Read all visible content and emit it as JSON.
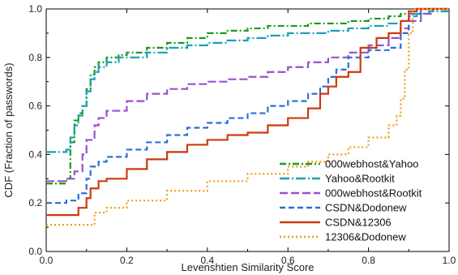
{
  "chart_data": {
    "type": "line",
    "title": "",
    "xlabel": "Levenshtien Similarity Score",
    "ylabel": "CDF (Fraction of passwords)",
    "xlim": [
      0.0,
      1.0
    ],
    "ylim": [
      0.0,
      1.0
    ],
    "xticks": [
      "0.0",
      "0.2",
      "0.4",
      "0.6",
      "0.8",
      "1.0"
    ],
    "yticks": [
      "0.0",
      "0.2",
      "0.4",
      "0.6",
      "0.8",
      "1.0"
    ],
    "grid": false,
    "legend_position": "bottom-right",
    "series": [
      {
        "name": "000webhost&Yahoo",
        "color": "#1a9c1a",
        "dash": "dashdot",
        "x": [
          0.0,
          0.05,
          0.06,
          0.07,
          0.08,
          0.09,
          0.1,
          0.11,
          0.12,
          0.13,
          0.15,
          0.18,
          0.2,
          0.25,
          0.3,
          0.35,
          0.4,
          0.45,
          0.5,
          0.55,
          0.6,
          0.65,
          0.7,
          0.75,
          0.8,
          0.85,
          0.88,
          0.9,
          0.92,
          0.95,
          0.97,
          1.0
        ],
        "y": [
          0.28,
          0.3,
          0.45,
          0.54,
          0.57,
          0.6,
          0.67,
          0.73,
          0.76,
          0.78,
          0.8,
          0.81,
          0.82,
          0.84,
          0.86,
          0.88,
          0.9,
          0.91,
          0.92,
          0.93,
          0.93,
          0.94,
          0.94,
          0.95,
          0.96,
          0.97,
          0.98,
          0.99,
          1.0,
          1.0,
          1.0,
          1.0
        ]
      },
      {
        "name": "Yahoo&Rootkit",
        "color": "#1aa0b8",
        "dash": "dashdotlong",
        "x": [
          0.0,
          0.05,
          0.06,
          0.07,
          0.08,
          0.09,
          0.1,
          0.11,
          0.12,
          0.13,
          0.15,
          0.18,
          0.2,
          0.25,
          0.3,
          0.35,
          0.4,
          0.45,
          0.5,
          0.55,
          0.6,
          0.65,
          0.7,
          0.75,
          0.8,
          0.85,
          0.88,
          0.9,
          0.92,
          0.95,
          0.98,
          1.0
        ],
        "y": [
          0.41,
          0.42,
          0.47,
          0.52,
          0.56,
          0.6,
          0.66,
          0.71,
          0.74,
          0.76,
          0.78,
          0.8,
          0.8,
          0.82,
          0.84,
          0.85,
          0.86,
          0.87,
          0.88,
          0.89,
          0.9,
          0.9,
          0.91,
          0.92,
          0.93,
          0.94,
          0.95,
          0.97,
          0.98,
          0.99,
          0.99,
          0.99
        ]
      },
      {
        "name": "000webhost&Rootkit",
        "color": "#9b4fd0",
        "dash": "longdash",
        "x": [
          0.0,
          0.05,
          0.07,
          0.09,
          0.1,
          0.12,
          0.13,
          0.15,
          0.2,
          0.25,
          0.3,
          0.35,
          0.4,
          0.45,
          0.5,
          0.55,
          0.6,
          0.65,
          0.7,
          0.75,
          0.8,
          0.85,
          0.88,
          0.9,
          0.93,
          0.96,
          1.0
        ],
        "y": [
          0.29,
          0.3,
          0.33,
          0.4,
          0.46,
          0.52,
          0.55,
          0.58,
          0.62,
          0.65,
          0.67,
          0.69,
          0.7,
          0.71,
          0.72,
          0.74,
          0.76,
          0.78,
          0.8,
          0.82,
          0.85,
          0.88,
          0.92,
          0.95,
          0.98,
          1.0,
          1.0
        ]
      },
      {
        "name": "CSDN&Dodonew",
        "color": "#2a6fd6",
        "dash": "dashed",
        "x": [
          0.0,
          0.05,
          0.08,
          0.1,
          0.11,
          0.13,
          0.15,
          0.2,
          0.25,
          0.3,
          0.35,
          0.4,
          0.45,
          0.5,
          0.55,
          0.6,
          0.65,
          0.68,
          0.7,
          0.72,
          0.75,
          0.8,
          0.85,
          0.88,
          0.9,
          0.93,
          1.0
        ],
        "y": [
          0.2,
          0.21,
          0.24,
          0.3,
          0.35,
          0.37,
          0.39,
          0.42,
          0.45,
          0.48,
          0.51,
          0.53,
          0.55,
          0.57,
          0.6,
          0.62,
          0.65,
          0.68,
          0.72,
          0.75,
          0.8,
          0.83,
          0.84,
          0.9,
          0.98,
          1.0,
          1.0
        ]
      },
      {
        "name": "CSDN&12306",
        "color": "#cc3a0e",
        "dash": "solid",
        "x": [
          0.0,
          0.05,
          0.08,
          0.1,
          0.11,
          0.13,
          0.15,
          0.2,
          0.25,
          0.3,
          0.35,
          0.4,
          0.45,
          0.5,
          0.55,
          0.6,
          0.65,
          0.68,
          0.7,
          0.72,
          0.75,
          0.78,
          0.82,
          0.85,
          0.88,
          0.9,
          0.92,
          1.0
        ],
        "y": [
          0.15,
          0.15,
          0.18,
          0.22,
          0.26,
          0.29,
          0.3,
          0.34,
          0.38,
          0.41,
          0.44,
          0.46,
          0.48,
          0.49,
          0.52,
          0.55,
          0.59,
          0.65,
          0.68,
          0.72,
          0.74,
          0.84,
          0.88,
          0.9,
          0.95,
          0.99,
          1.0,
          1.0
        ]
      },
      {
        "name": "12306&Dodonew",
        "color": "#f49a1a",
        "dash": "dotted",
        "x": [
          0.0,
          0.1,
          0.12,
          0.15,
          0.2,
          0.3,
          0.4,
          0.5,
          0.6,
          0.65,
          0.7,
          0.75,
          0.8,
          0.85,
          0.87,
          0.88,
          0.89,
          0.9,
          0.91,
          1.0
        ],
        "y": [
          0.11,
          0.11,
          0.16,
          0.18,
          0.21,
          0.25,
          0.29,
          0.32,
          0.35,
          0.37,
          0.4,
          0.43,
          0.47,
          0.52,
          0.56,
          0.63,
          0.75,
          0.9,
          1.0,
          1.0
        ]
      }
    ]
  }
}
